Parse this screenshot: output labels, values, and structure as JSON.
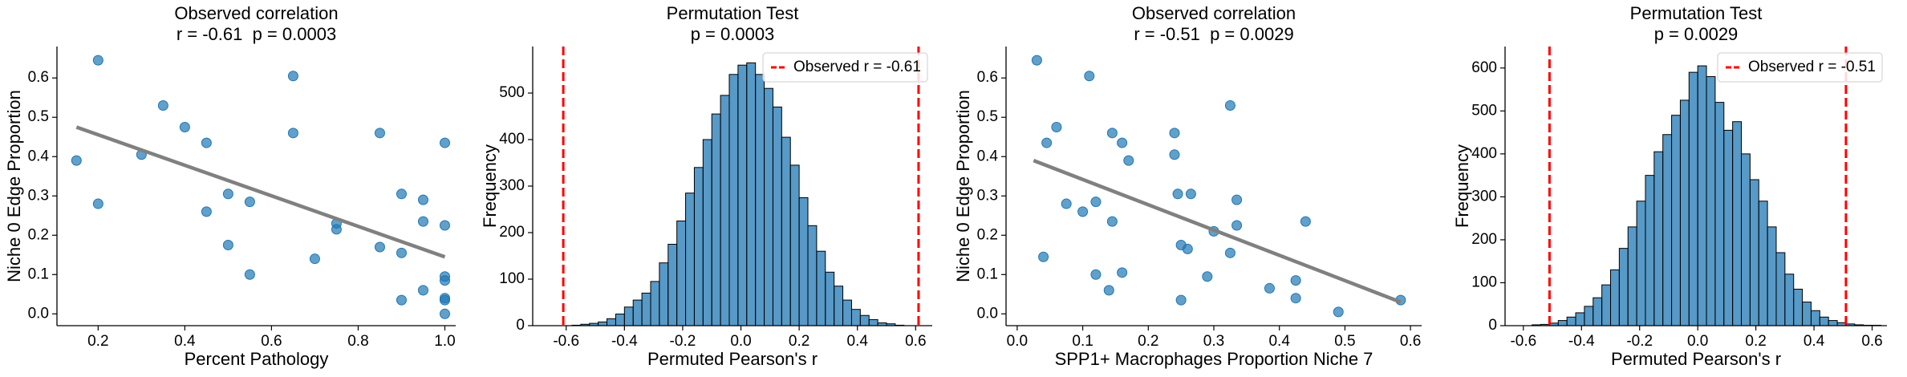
{
  "chart_data": [
    {
      "type": "scatter",
      "title": "Observed correlation",
      "subtitle": "r = -0.61  p = 0.0003",
      "xlabel": "Percent Pathology",
      "ylabel": "Niche 0 Edge Proportion",
      "color": "#1f77b4",
      "x": [
        0.15,
        0.2,
        0.2,
        0.3,
        0.35,
        0.4,
        0.45,
        0.45,
        0.5,
        0.5,
        0.55,
        0.55,
        0.65,
        0.65,
        0.75,
        0.75,
        0.7,
        0.85,
        0.85,
        0.9,
        0.9,
        0.9,
        0.95,
        0.95,
        0.95,
        1.0,
        1.0,
        1.0,
        1.0,
        1.0,
        1.0,
        1.0
      ],
      "values": [
        0.39,
        0.645,
        0.28,
        0.405,
        0.53,
        0.475,
        0.435,
        0.26,
        0.305,
        0.175,
        0.285,
        0.1,
        0.605,
        0.46,
        0.23,
        0.215,
        0.14,
        0.46,
        0.17,
        0.305,
        0.155,
        0.035,
        0.29,
        0.235,
        0.06,
        0.435,
        0.225,
        0.095,
        0.085,
        0.04,
        0.035,
        0.0
      ],
      "fit": {
        "color": "#808080",
        "x": [
          0.15,
          1.0
        ],
        "values": [
          0.475,
          0.145
        ]
      },
      "xlim": [
        0.105,
        1.025
      ],
      "ylim": [
        -0.03,
        0.68
      ],
      "xticks": [
        0.2,
        0.4,
        0.6,
        0.8,
        {
          "value": 1,
          "label": "1.0"
        }
      ],
      "yticks": [
        {
          "value": 0,
          "label": "0.0"
        },
        0.1,
        0.2,
        0.3,
        0.4,
        0.5,
        0.6
      ]
    },
    {
      "type": "histogram",
      "title": "Permutation Test",
      "subtitle": "p = 0.0003",
      "xlabel": "Permuted Pearson's r",
      "ylabel": "Frequency",
      "color": "#1f77b4",
      "bins": [
        -0.58,
        -0.55,
        -0.52,
        -0.49,
        -0.46,
        -0.43,
        -0.4,
        -0.37,
        -0.34,
        -0.31,
        -0.28,
        -0.25,
        -0.22,
        -0.19,
        -0.16,
        -0.13,
        -0.1,
        -0.07,
        -0.04,
        -0.01,
        0.02,
        0.05,
        0.08,
        0.11,
        0.14,
        0.17,
        0.2,
        0.23,
        0.26,
        0.29,
        0.32,
        0.35,
        0.38,
        0.41,
        0.44,
        0.47,
        0.5,
        0.53,
        0.56
      ],
      "values": [
        1,
        3,
        5,
        8,
        15,
        25,
        40,
        55,
        70,
        95,
        135,
        175,
        225,
        285,
        340,
        400,
        455,
        495,
        540,
        560,
        565,
        540,
        510,
        470,
        405,
        345,
        275,
        215,
        160,
        115,
        85,
        55,
        35,
        22,
        13,
        6,
        4,
        1
      ],
      "vlines": {
        "name": "Observed r = -0.61",
        "color": "#ff0000",
        "values": [
          -0.61,
          0.61
        ]
      },
      "legend": "upper right",
      "xlim": [
        -0.715,
        0.657
      ],
      "ylim": [
        0,
        600
      ],
      "xticks": [
        -0.6,
        -0.4,
        -0.2,
        {
          "value": 0,
          "label": "0.0"
        },
        0.2,
        0.4,
        0.6
      ],
      "yticks": [
        0,
        100,
        200,
        300,
        400,
        500
      ]
    },
    {
      "type": "scatter",
      "title": "Observed correlation",
      "subtitle": "r = -0.51  p = 0.0029",
      "xlabel": "SPP1+ Macrophages Proportion Niche 7",
      "ylabel": "Niche 0 Edge Proportion",
      "color": "#1f77b4",
      "x": [
        0.03,
        0.04,
        0.045,
        0.06,
        0.075,
        0.1,
        0.11,
        0.12,
        0.12,
        0.145,
        0.145,
        0.16,
        0.16,
        0.14,
        0.17,
        0.24,
        0.24,
        0.245,
        0.25,
        0.26,
        0.25,
        0.265,
        0.29,
        0.3,
        0.325,
        0.325,
        0.335,
        0.335,
        0.385,
        0.425,
        0.425,
        0.44,
        0.49,
        0.585
      ],
      "values": [
        0.645,
        0.145,
        0.435,
        0.475,
        0.28,
        0.26,
        0.605,
        0.285,
        0.1,
        0.235,
        0.46,
        0.435,
        0.105,
        0.06,
        0.39,
        0.46,
        0.405,
        0.305,
        0.175,
        0.165,
        0.035,
        0.305,
        0.095,
        0.21,
        0.53,
        0.155,
        0.225,
        0.29,
        0.065,
        0.085,
        0.04,
        0.235,
        0.005,
        0.035
      ],
      "fit": {
        "color": "#808080",
        "x": [
          0.025,
          0.585
        ],
        "values": [
          0.39,
          0.03
        ]
      },
      "xlim": [
        -0.017,
        0.617
      ],
      "ylim": [
        -0.03,
        0.68
      ],
      "xticks": [
        {
          "value": 0,
          "label": "0.0"
        },
        0.1,
        0.2,
        0.3,
        0.4,
        0.5,
        0.6
      ],
      "yticks": [
        {
          "value": 0,
          "label": "0.0"
        },
        0.1,
        0.2,
        0.3,
        0.4,
        0.5,
        0.6
      ]
    },
    {
      "type": "histogram",
      "title": "Permutation Test",
      "subtitle": "p = 0.0029",
      "xlabel": "Permuted Pearson's r",
      "ylabel": "Frequency",
      "color": "#1f77b4",
      "bins": [
        -0.57,
        -0.54,
        -0.51,
        -0.48,
        -0.45,
        -0.42,
        -0.39,
        -0.36,
        -0.33,
        -0.3,
        -0.27,
        -0.24,
        -0.21,
        -0.18,
        -0.15,
        -0.12,
        -0.09,
        -0.06,
        -0.03,
        0.0,
        0.03,
        0.06,
        0.09,
        0.12,
        0.15,
        0.18,
        0.21,
        0.24,
        0.27,
        0.3,
        0.33,
        0.36,
        0.39,
        0.42,
        0.45,
        0.48,
        0.51,
        0.54,
        0.57,
        0.6,
        0.63
      ],
      "values": [
        2,
        3,
        6,
        12,
        20,
        30,
        45,
        65,
        95,
        130,
        180,
        230,
        290,
        350,
        405,
        445,
        490,
        525,
        590,
        605,
        580,
        520,
        455,
        475,
        400,
        340,
        290,
        230,
        170,
        120,
        85,
        55,
        35,
        20,
        12,
        7,
        4,
        2,
        1,
        1
      ],
      "vlines": {
        "name": "Observed r = -0.51",
        "color": "#ff0000",
        "values": [
          -0.51,
          0.51
        ]
      },
      "legend": "upper right",
      "xlim": [
        -0.663,
        0.651
      ],
      "ylim": [
        0,
        650
      ],
      "xticks": [
        -0.6,
        -0.4,
        -0.2,
        {
          "value": 0,
          "label": "0.0"
        },
        0.2,
        0.4,
        0.6
      ],
      "yticks": [
        0,
        100,
        200,
        300,
        400,
        500,
        600
      ]
    }
  ]
}
